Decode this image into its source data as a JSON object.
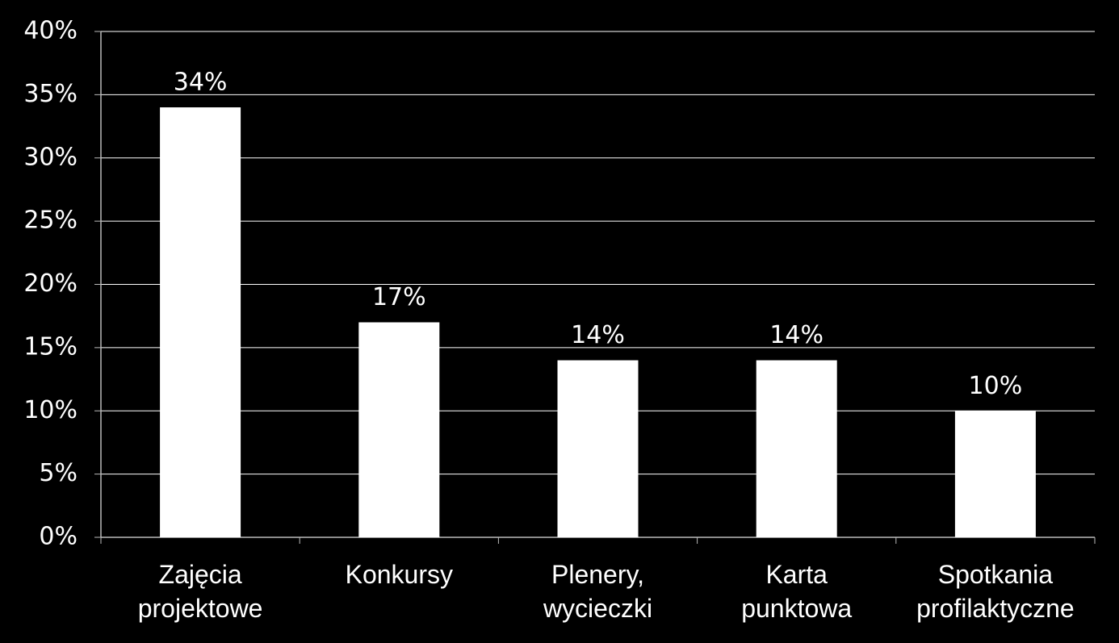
{
  "chart_data": {
    "type": "bar",
    "categories": [
      "Zajęcia\nprojektowe",
      "Konkursy",
      "Plenery,\nwycieczki",
      "Karta\npunktowa",
      "Spotkania\nprofilaktyczne"
    ],
    "values": [
      34,
      17,
      14,
      14,
      10
    ],
    "value_labels": [
      "34%",
      "17%",
      "14%",
      "14%",
      "10%"
    ],
    "color": "#ffffff",
    "ylim": [
      0,
      40
    ],
    "yticks": [
      {
        "value": 0,
        "label": "0%"
      },
      {
        "value": 5,
        "label": "5%"
      },
      {
        "value": 10,
        "label": "10%"
      },
      {
        "value": 15,
        "label": "15%"
      },
      {
        "value": 20,
        "label": "20%"
      },
      {
        "value": 25,
        "label": "25%"
      },
      {
        "value": 30,
        "label": "30%"
      },
      {
        "value": 35,
        "label": "35%"
      },
      {
        "value": 40,
        "label": "40%"
      }
    ],
    "grid": true
  }
}
